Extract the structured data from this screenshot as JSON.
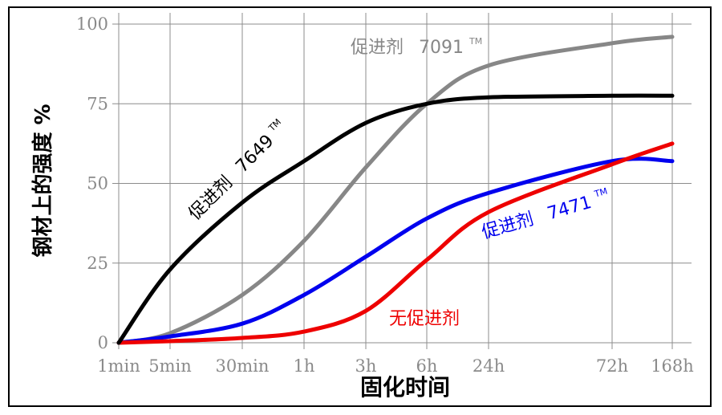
{
  "chart_data": {
    "type": "line",
    "xlabel": "固化时间",
    "ylabel": "钢材上的强度 %",
    "x_ticks": [
      "1min",
      "5min",
      "30min",
      "1h",
      "3h",
      "6h",
      "24h",
      "72h",
      "168h"
    ],
    "x_minutes": [
      1,
      5,
      30,
      60,
      180,
      360,
      1440,
      4320,
      10080
    ],
    "y_ticks": [
      "0",
      "25",
      "50",
      "75",
      "100"
    ],
    "ylim": [
      0,
      100
    ],
    "grid": true,
    "series": [
      {
        "name": "促进剂 7091",
        "label_main": "促进剂",
        "label_num": "7091",
        "tm": "TM",
        "color": "#878787",
        "minutes": [
          1,
          5,
          30,
          60,
          180,
          360,
          1440,
          4320,
          10080
        ],
        "values": [
          0,
          3,
          15,
          32,
          55,
          75,
          87,
          94,
          96
        ]
      },
      {
        "name": "促进剂 7649",
        "label_main": "促进剂",
        "label_num": "7649",
        "tm": "TM",
        "color": "#000000",
        "minutes": [
          1,
          5,
          30,
          60,
          180,
          360,
          1440,
          4320,
          10080
        ],
        "values": [
          0,
          23,
          44,
          57,
          69,
          75,
          77,
          77.5,
          77.5
        ]
      },
      {
        "name": "促进剂 7471",
        "label_main": "促进剂",
        "label_num": "7471",
        "tm": "TM",
        "color": "#0000ee",
        "minutes": [
          1,
          5,
          30,
          60,
          180,
          360,
          1440,
          4320,
          10080
        ],
        "values": [
          0,
          2,
          6,
          15,
          27,
          39,
          47,
          57,
          57
        ]
      },
      {
        "name": "无促进剂",
        "label_main": "无促进剂",
        "label_num": "",
        "tm": "",
        "color": "#ee0000",
        "minutes": [
          1,
          5,
          30,
          60,
          180,
          360,
          1440,
          4320,
          10080
        ],
        "values": [
          0,
          0.5,
          1.5,
          3.5,
          10,
          26,
          41,
          56,
          62.5
        ]
      }
    ]
  }
}
